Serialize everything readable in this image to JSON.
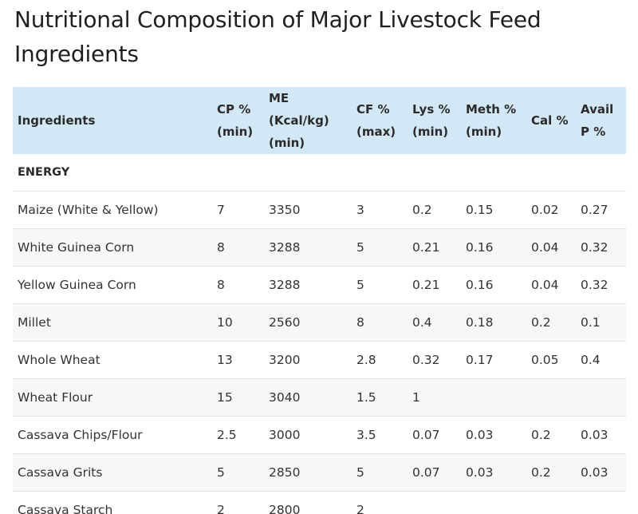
{
  "title": "Nutritional Composition of Major Livestock Feed Ingredients",
  "table": {
    "headers": [
      {
        "line1": "Ingredients",
        "line2": ""
      },
      {
        "line1": "CP %",
        "line2": "(min)"
      },
      {
        "line1": "ME (Kcal/kg)",
        "line2": "(min)"
      },
      {
        "line1": "CF %",
        "line2": "(max)"
      },
      {
        "line1": "Lys %",
        "line2": "(min)"
      },
      {
        "line1": "Meth %",
        "line2": "(min)"
      },
      {
        "line1": "Cal %",
        "line2": ""
      },
      {
        "line1": "Avail",
        "line2": "P %"
      }
    ],
    "section": "ENERGY",
    "rows": [
      [
        "Maize (White & Yellow)",
        "7",
        "3350",
        "3",
        "0.2",
        "0.15",
        "0.02",
        "0.27"
      ],
      [
        "White Guinea Corn",
        "8",
        "3288",
        "5",
        "0.21",
        "0.16",
        "0.04",
        "0.32"
      ],
      [
        "Yellow Guinea Corn",
        "8",
        "3288",
        "5",
        "0.21",
        "0.16",
        "0.04",
        "0.32"
      ],
      [
        "Millet",
        "10",
        "2560",
        "8",
        "0.4",
        "0.18",
        "0.2",
        "0.1"
      ],
      [
        "Whole Wheat",
        "13",
        "3200",
        "2.8",
        "0.32",
        "0.17",
        "0.05",
        "0.4"
      ],
      [
        "Wheat Flour",
        "15",
        "3040",
        "1.5",
        "1",
        "",
        "",
        ""
      ],
      [
        "Cassava Chips/Flour",
        "2.5",
        "3000",
        "3.5",
        "0.07",
        "0.03",
        "0.2",
        "0.03"
      ],
      [
        "Cassava Grits",
        "5",
        "2850",
        "5",
        "0.07",
        "0.03",
        "0.2",
        "0.03"
      ],
      [
        "Cassava Starch",
        "2",
        "2800",
        "2",
        "",
        "",
        "",
        ""
      ]
    ]
  }
}
